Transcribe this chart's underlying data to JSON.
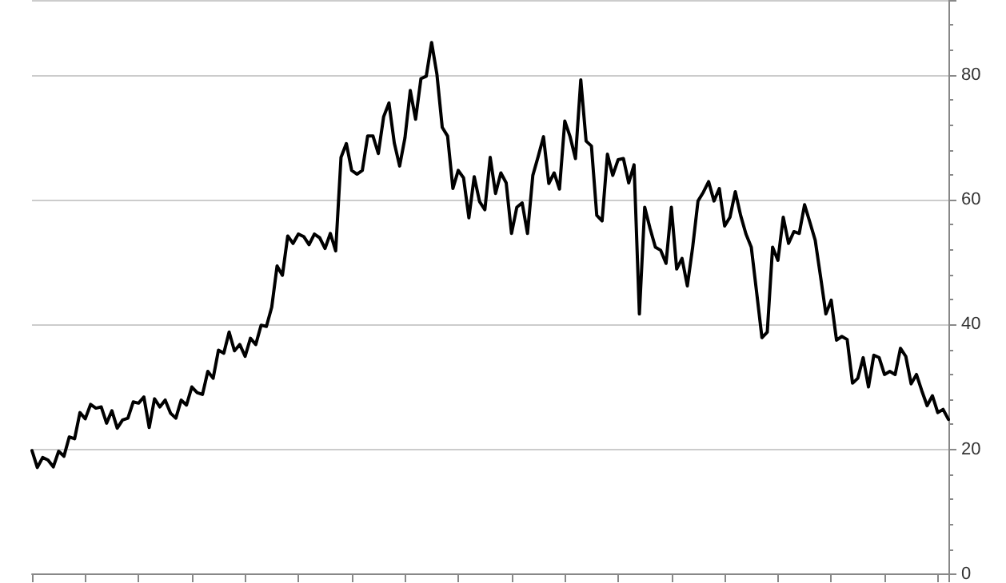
{
  "chart_data": {
    "type": "line",
    "categories": [
      null,
      null,
      null,
      null,
      null,
      null,
      null,
      null,
      null,
      null,
      null,
      null,
      null,
      null,
      null,
      null,
      null,
      null,
      null,
      null,
      null,
      null,
      null,
      null,
      null,
      null,
      null,
      null,
      null,
      null,
      null,
      null,
      null,
      null,
      null,
      null,
      null,
      null,
      null,
      null,
      null,
      null,
      null,
      null,
      null,
      null,
      null,
      null,
      null,
      null,
      null,
      null,
      null,
      null,
      null,
      null,
      null,
      null,
      null,
      null,
      null,
      null,
      null,
      null,
      null,
      null,
      null,
      null,
      null,
      null,
      null,
      null,
      null,
      null,
      null,
      null,
      null,
      null,
      null,
      null,
      null,
      null,
      null,
      null,
      null,
      null,
      null,
      null,
      null,
      null,
      null,
      null,
      null,
      null,
      null,
      null,
      null,
      null,
      null,
      null,
      null,
      null,
      null,
      null,
      null,
      null,
      null,
      null,
      null,
      null,
      null,
      null,
      null,
      null,
      null,
      null,
      null,
      null,
      null,
      null,
      null,
      null,
      null,
      null,
      null,
      null,
      null,
      null,
      null,
      null,
      null,
      null,
      null,
      null,
      null,
      null,
      null,
      null,
      null,
      null,
      null,
      null,
      null,
      null,
      null,
      null,
      null,
      null,
      null,
      null,
      null,
      null,
      null,
      null,
      null,
      null,
      null,
      null,
      null,
      null,
      null,
      null,
      null,
      null,
      null,
      null,
      null,
      null,
      null,
      null,
      null,
      null,
      null
    ],
    "series": [
      {
        "color": "#000000",
        "values": [
          19.8,
          17.1,
          18.7,
          18.3,
          17.2,
          19.7,
          18.9,
          22.0,
          21.7,
          25.9,
          24.9,
          27.2,
          26.6,
          26.8,
          24.2,
          26.2,
          23.4,
          24.7,
          25.0,
          27.6,
          27.4,
          28.4,
          23.5,
          28.1,
          26.8,
          27.9,
          25.8,
          25.0,
          27.9,
          27.1,
          30.0,
          29.1,
          28.8,
          32.5,
          31.4,
          35.9,
          35.4,
          38.8,
          35.8,
          36.8,
          34.9,
          37.8,
          36.8,
          39.9,
          39.7,
          42.8,
          49.4,
          47.9,
          54.2,
          53.0,
          54.5,
          54.1,
          52.8,
          54.5,
          53.9,
          52.2,
          54.6,
          51.8,
          66.8,
          69.0,
          64.7,
          64.1,
          64.7,
          70.2,
          70.2,
          67.4,
          73.3,
          75.5,
          69.1,
          65.4,
          69.9,
          77.5,
          72.9,
          79.4,
          79.8,
          85.2,
          80.1,
          71.6,
          70.2,
          61.8,
          64.7,
          63.5,
          57.1,
          63.7,
          59.7,
          58.4,
          66.8,
          61.0,
          64.3,
          62.7,
          54.6,
          58.8,
          59.5,
          54.6,
          63.9,
          66.9,
          70.1,
          62.6,
          64.3,
          61.7,
          72.6,
          70.1,
          66.6,
          79.2,
          69.4,
          68.6,
          57.5,
          56.6,
          67.3,
          63.9,
          66.4,
          66.6,
          62.7,
          65.6,
          41.7,
          58.8,
          55.4,
          52.4,
          51.9,
          49.8,
          58.8,
          48.9,
          50.6,
          46.2,
          52.4,
          59.8,
          61.2,
          62.9,
          59.8,
          61.8,
          55.8,
          57.2,
          61.3,
          57.5,
          54.5,
          52.4,
          45.2,
          37.9,
          38.8,
          52.4,
          50.3,
          57.2,
          53.0,
          54.9,
          54.6,
          59.2,
          56.4,
          53.5,
          47.7,
          41.7,
          43.9,
          37.5,
          38.1,
          37.6,
          30.6,
          31.4,
          34.7,
          30.0,
          35.1,
          34.7,
          32.0,
          32.5,
          32.0,
          36.2,
          34.9,
          30.5,
          32.0,
          29.4,
          27.0,
          28.6,
          25.9,
          26.4,
          24.8
        ]
      }
    ],
    "ylim": [
      0,
      92
    ],
    "yticks": [
      0,
      20,
      40,
      60,
      80
    ],
    "grid": "y",
    "tick_labels": "y",
    "line_style": "solid"
  }
}
